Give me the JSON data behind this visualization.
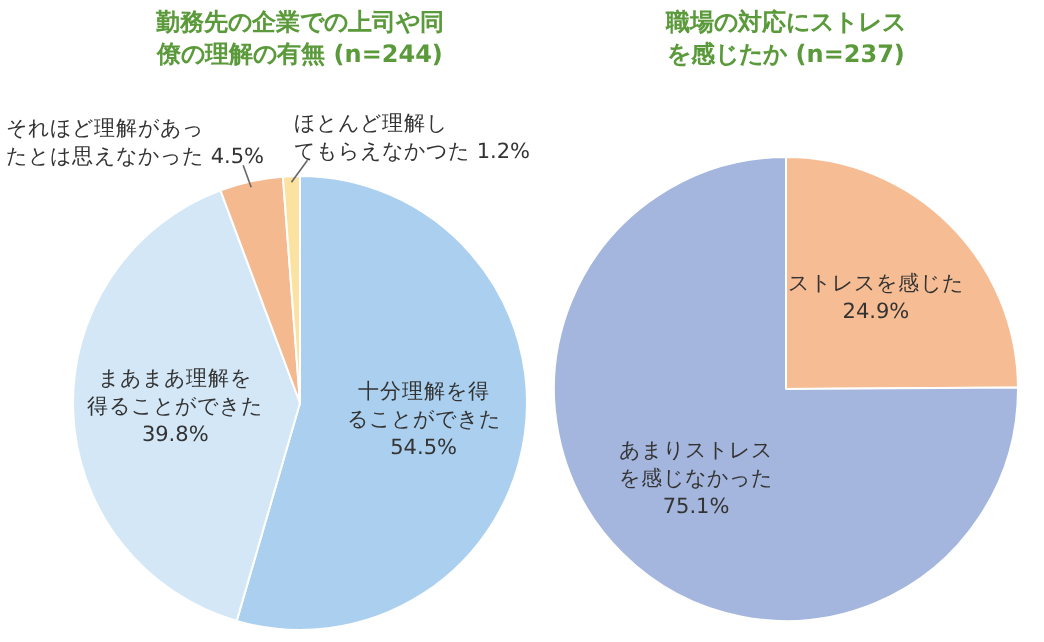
{
  "chart_data": [
    {
      "type": "pie",
      "title": "勤務先の企業での上司や同僚の理解の有無 (n=244)",
      "categories": [
        "十分理解を得ることができた",
        "まあまあ理解を得ることができた",
        "それほど理解があったとは思えなかった",
        "ほとんど理解してもらえなかつた"
      ],
      "values": [
        54.5,
        39.8,
        4.5,
        1.2
      ],
      "value_labels": [
        "54.5%",
        "39.8%",
        "4.5%",
        "1.2%"
      ],
      "colors": [
        "#abd0ef",
        "#d3e7f6",
        "#f5b990",
        "#fbe2a0"
      ],
      "legend": false
    },
    {
      "type": "pie",
      "title": "職場の対応にストレスを感じたか (n=237)",
      "categories": [
        "ストレスを感じた",
        "あまりストレスを感じなかった"
      ],
      "values": [
        24.9,
        75.1
      ],
      "value_labels": [
        "24.9%",
        "75.1%"
      ],
      "colors": [
        "#f6bc93",
        "#a4b6dd"
      ],
      "legend": false
    }
  ]
}
